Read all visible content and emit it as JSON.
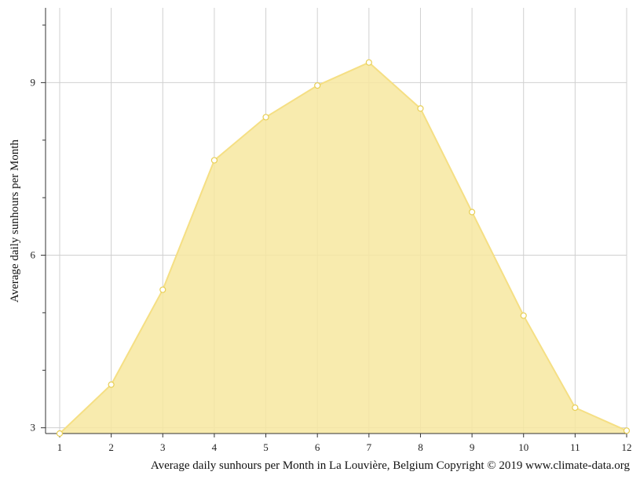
{
  "chart_data": {
    "type": "area",
    "x": [
      1,
      2,
      3,
      4,
      5,
      6,
      7,
      8,
      9,
      10,
      11,
      12
    ],
    "values": [
      2.9,
      3.75,
      5.4,
      7.65,
      8.4,
      8.95,
      9.35,
      8.55,
      6.75,
      4.95,
      3.35,
      2.95
    ],
    "ylabel": "Average daily sunhours per Month",
    "xlabel": "",
    "yticks": [
      3,
      6,
      9
    ],
    "xticks": [
      "1",
      "2",
      "3",
      "4",
      "5",
      "6",
      "7",
      "8",
      "9",
      "10",
      "11",
      "12"
    ],
    "ylim": [
      2.9,
      10.3
    ],
    "xlim": [
      1,
      12
    ],
    "grid": true,
    "caption": "Average daily sunhours per Month in La Louvière, Belgium Copyright © 2019 www.climate-data.org",
    "colors": {
      "fill": "#f7e8a0",
      "line": "#f5df84",
      "marker_stroke": "#e8cf55",
      "grid": "#d0d0d0",
      "axis": "#333333"
    }
  }
}
